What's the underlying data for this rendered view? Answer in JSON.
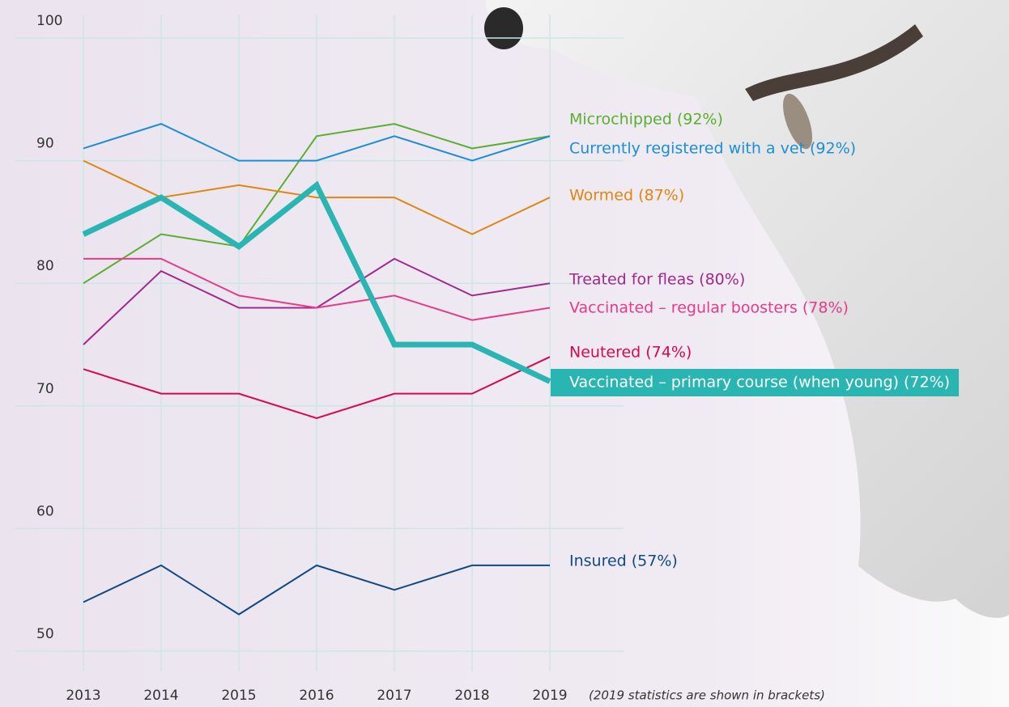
{
  "chart_data": {
    "type": "line",
    "categories": [
      "2013",
      "2014",
      "2015",
      "2016",
      "2017",
      "2018",
      "2019"
    ],
    "ylim": [
      50,
      100
    ],
    "yticks": [
      50,
      60,
      70,
      80,
      90,
      100
    ],
    "grid": true,
    "note": "(2019 statistics are shown in brackets)",
    "series": [
      {
        "name": "Microchipped (92%)",
        "color": "#5aaf2e",
        "values": [
          80,
          84,
          83,
          92,
          93,
          91,
          92
        ]
      },
      {
        "name": "Currently registered with a vet (92%)",
        "color": "#1a8fd6",
        "values": [
          91,
          93,
          90,
          90,
          92,
          90,
          92
        ]
      },
      {
        "name": "Wormed (87%)",
        "color": "#e0860f",
        "values": [
          90,
          87,
          88,
          87,
          87,
          84,
          87
        ]
      },
      {
        "name": "Treated for fleas (80%)",
        "color": "#a3288c",
        "values": [
          75,
          81,
          78,
          78,
          82,
          79,
          80
        ]
      },
      {
        "name": "Vaccinated – regular boosters (78%)",
        "color": "#e63a8a",
        "values": [
          82,
          82,
          79,
          78,
          79,
          77,
          78
        ]
      },
      {
        "name": "Neutered (74%)",
        "color": "#d6084f",
        "values": [
          73,
          71,
          71,
          69,
          71,
          71,
          74
        ]
      },
      {
        "name": "Vaccinated – primary course (when young) (72%)",
        "color": "#2ab5b3",
        "highlight": true,
        "values": [
          84,
          87,
          83,
          88,
          75,
          75,
          72
        ]
      },
      {
        "name": "Insured (57%)",
        "color": "#0f4a85",
        "values": [
          54,
          57,
          53,
          57,
          55,
          57,
          57
        ]
      }
    ]
  }
}
